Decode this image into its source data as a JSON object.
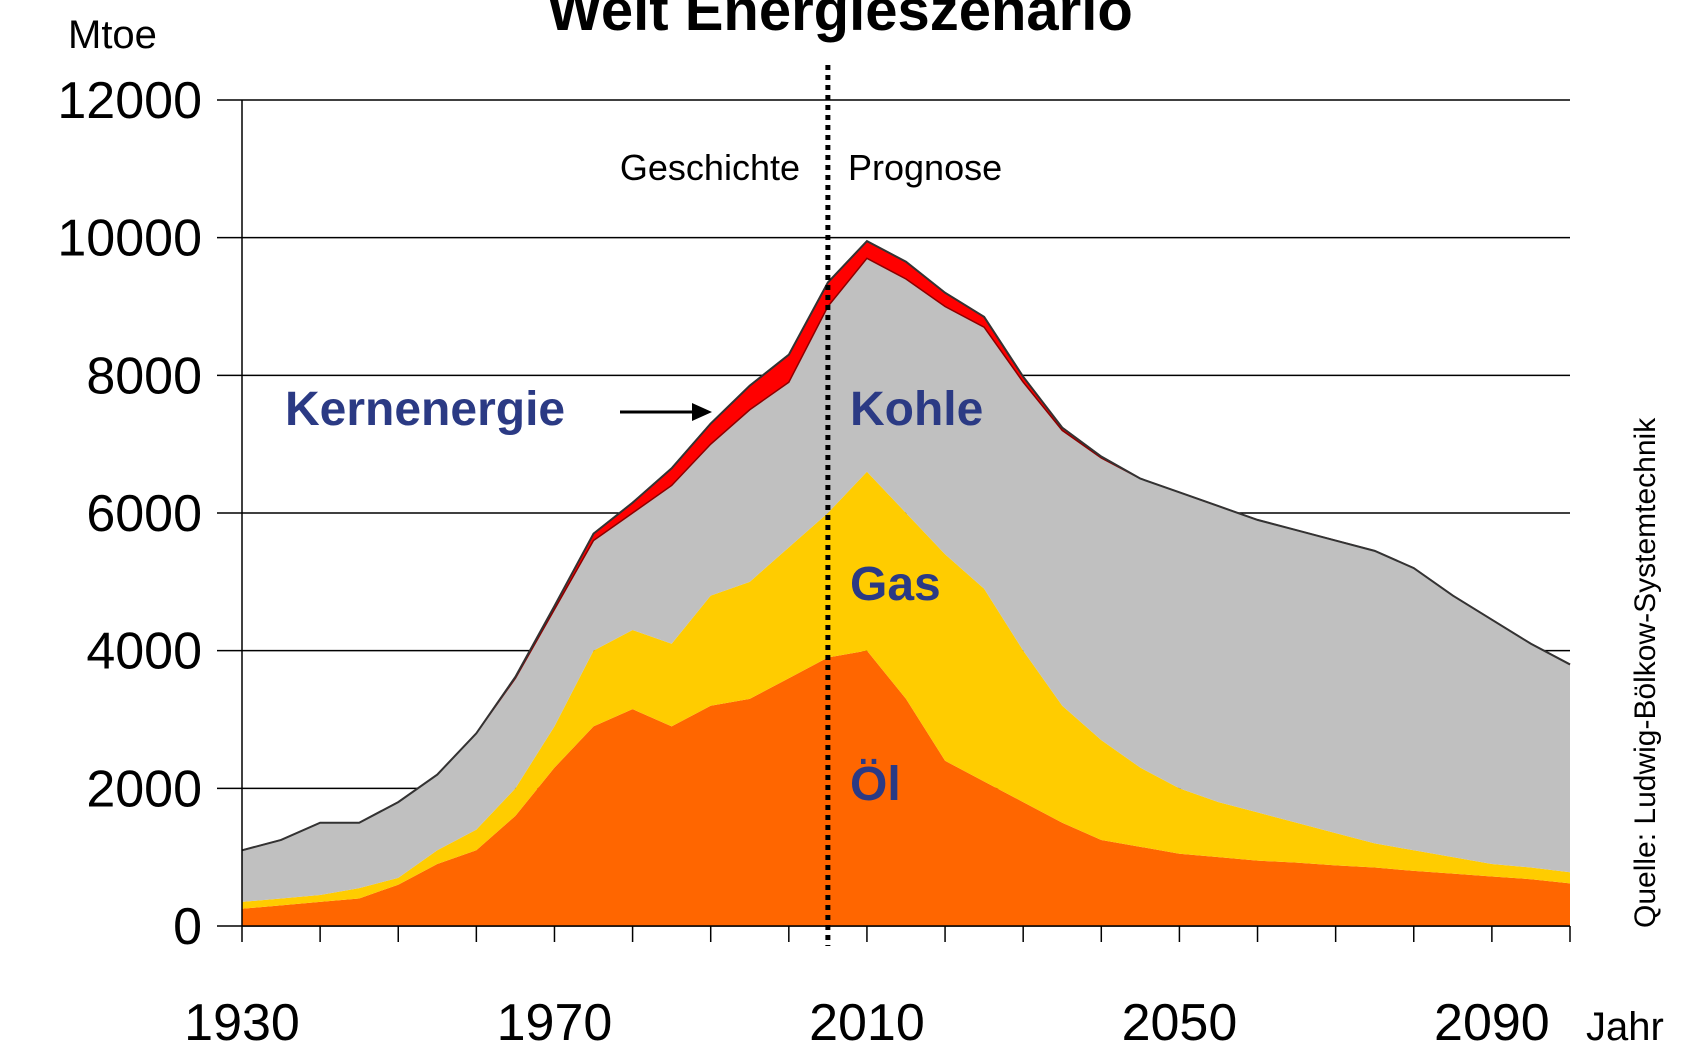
{
  "chart_data": {
    "type": "stacked_area",
    "title": "Welt Energieszenario",
    "y_label": "Mtoe",
    "x_label": "Jahr",
    "source": "Quelle: Ludwig-Bölkow-Systemtechnik",
    "annotations": {
      "history": "Geschichte",
      "forecast": "Prognose",
      "divider_x": 2005
    },
    "x": [
      1930,
      1935,
      1940,
      1945,
      1950,
      1955,
      1960,
      1965,
      1970,
      1975,
      1980,
      1985,
      1990,
      1995,
      2000,
      2005,
      2010,
      2015,
      2020,
      2025,
      2030,
      2035,
      2040,
      2045,
      2050,
      2055,
      2060,
      2065,
      2070,
      2075,
      2080,
      2085,
      2090,
      2095,
      2100
    ],
    "series": [
      {
        "name": "Öl",
        "color": "#ff6600",
        "values": [
          250,
          300,
          350,
          400,
          600,
          900,
          1100,
          1600,
          2300,
          2900,
          3150,
          2900,
          3200,
          3300,
          3600,
          3900,
          4000,
          3300,
          2400,
          2100,
          1800,
          1500,
          1250,
          1150,
          1050,
          1000,
          950,
          920,
          880,
          850,
          800,
          760,
          720,
          680,
          620
        ]
      },
      {
        "name": "Gas",
        "color": "#ffcc00",
        "values": [
          100,
          100,
          100,
          150,
          100,
          200,
          300,
          400,
          600,
          1100,
          1150,
          1200,
          1600,
          1700,
          1900,
          2100,
          2600,
          2700,
          3000,
          2800,
          2200,
          1700,
          1450,
          1150,
          950,
          800,
          700,
          580,
          470,
          350,
          300,
          240,
          180,
          170,
          160
        ]
      },
      {
        "name": "Kohle",
        "color": "#c0c0c0",
        "values": [
          750,
          850,
          1050,
          950,
          1100,
          1100,
          1400,
          1600,
          1700,
          1600,
          1700,
          2300,
          2200,
          2500,
          2400,
          3000,
          3100,
          3400,
          3600,
          3800,
          3900,
          4000,
          4100,
          4200,
          4300,
          4300,
          4250,
          4250,
          4250,
          4250,
          4100,
          3800,
          3550,
          3250,
          3020
        ]
      },
      {
        "name": "Kernenergie",
        "color": "#ff0000",
        "values": [
          0,
          0,
          0,
          0,
          0,
          0,
          0,
          20,
          50,
          100,
          150,
          250,
          300,
          350,
          400,
          350,
          250,
          250,
          200,
          150,
          80,
          40,
          20,
          0,
          0,
          0,
          0,
          0,
          0,
          0,
          0,
          0,
          0,
          0,
          0
        ]
      }
    ],
    "xlim": [
      1930,
      2100
    ],
    "xticks": [
      1930,
      1970,
      2010,
      2050,
      2090
    ],
    "xminor_ticks": [
      1930,
      1940,
      1950,
      1960,
      1970,
      1980,
      1990,
      2000,
      2010,
      2020,
      2030,
      2040,
      2050,
      2060,
      2070,
      2080,
      2090,
      2100
    ],
    "ylim": [
      0,
      12000
    ],
    "yticks": [
      0,
      2000,
      4000,
      6000,
      8000,
      10000,
      12000
    ],
    "grid": true
  }
}
